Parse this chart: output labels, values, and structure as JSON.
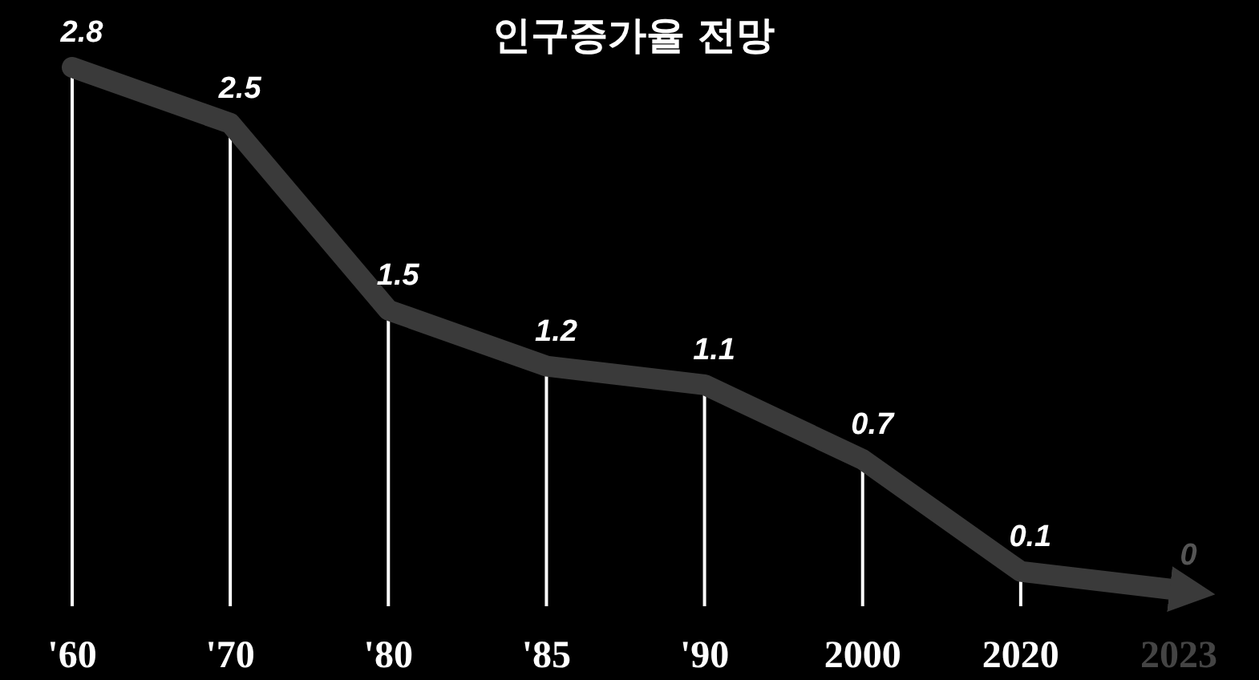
{
  "chart_data": {
    "type": "line",
    "title": "인구증가율 전망",
    "categories": [
      "'60",
      "'70",
      "'80",
      "'85",
      "'90",
      "2000",
      "2020",
      "2023"
    ],
    "series": [
      {
        "color": "#3a3a3a",
        "values": [
          2.8,
          2.5,
          1.5,
          1.2,
          1.1,
          0.7,
          0.1,
          0
        ]
      }
    ],
    "data_labels": true,
    "line_style": "solid",
    "grid": "x"
  }
}
